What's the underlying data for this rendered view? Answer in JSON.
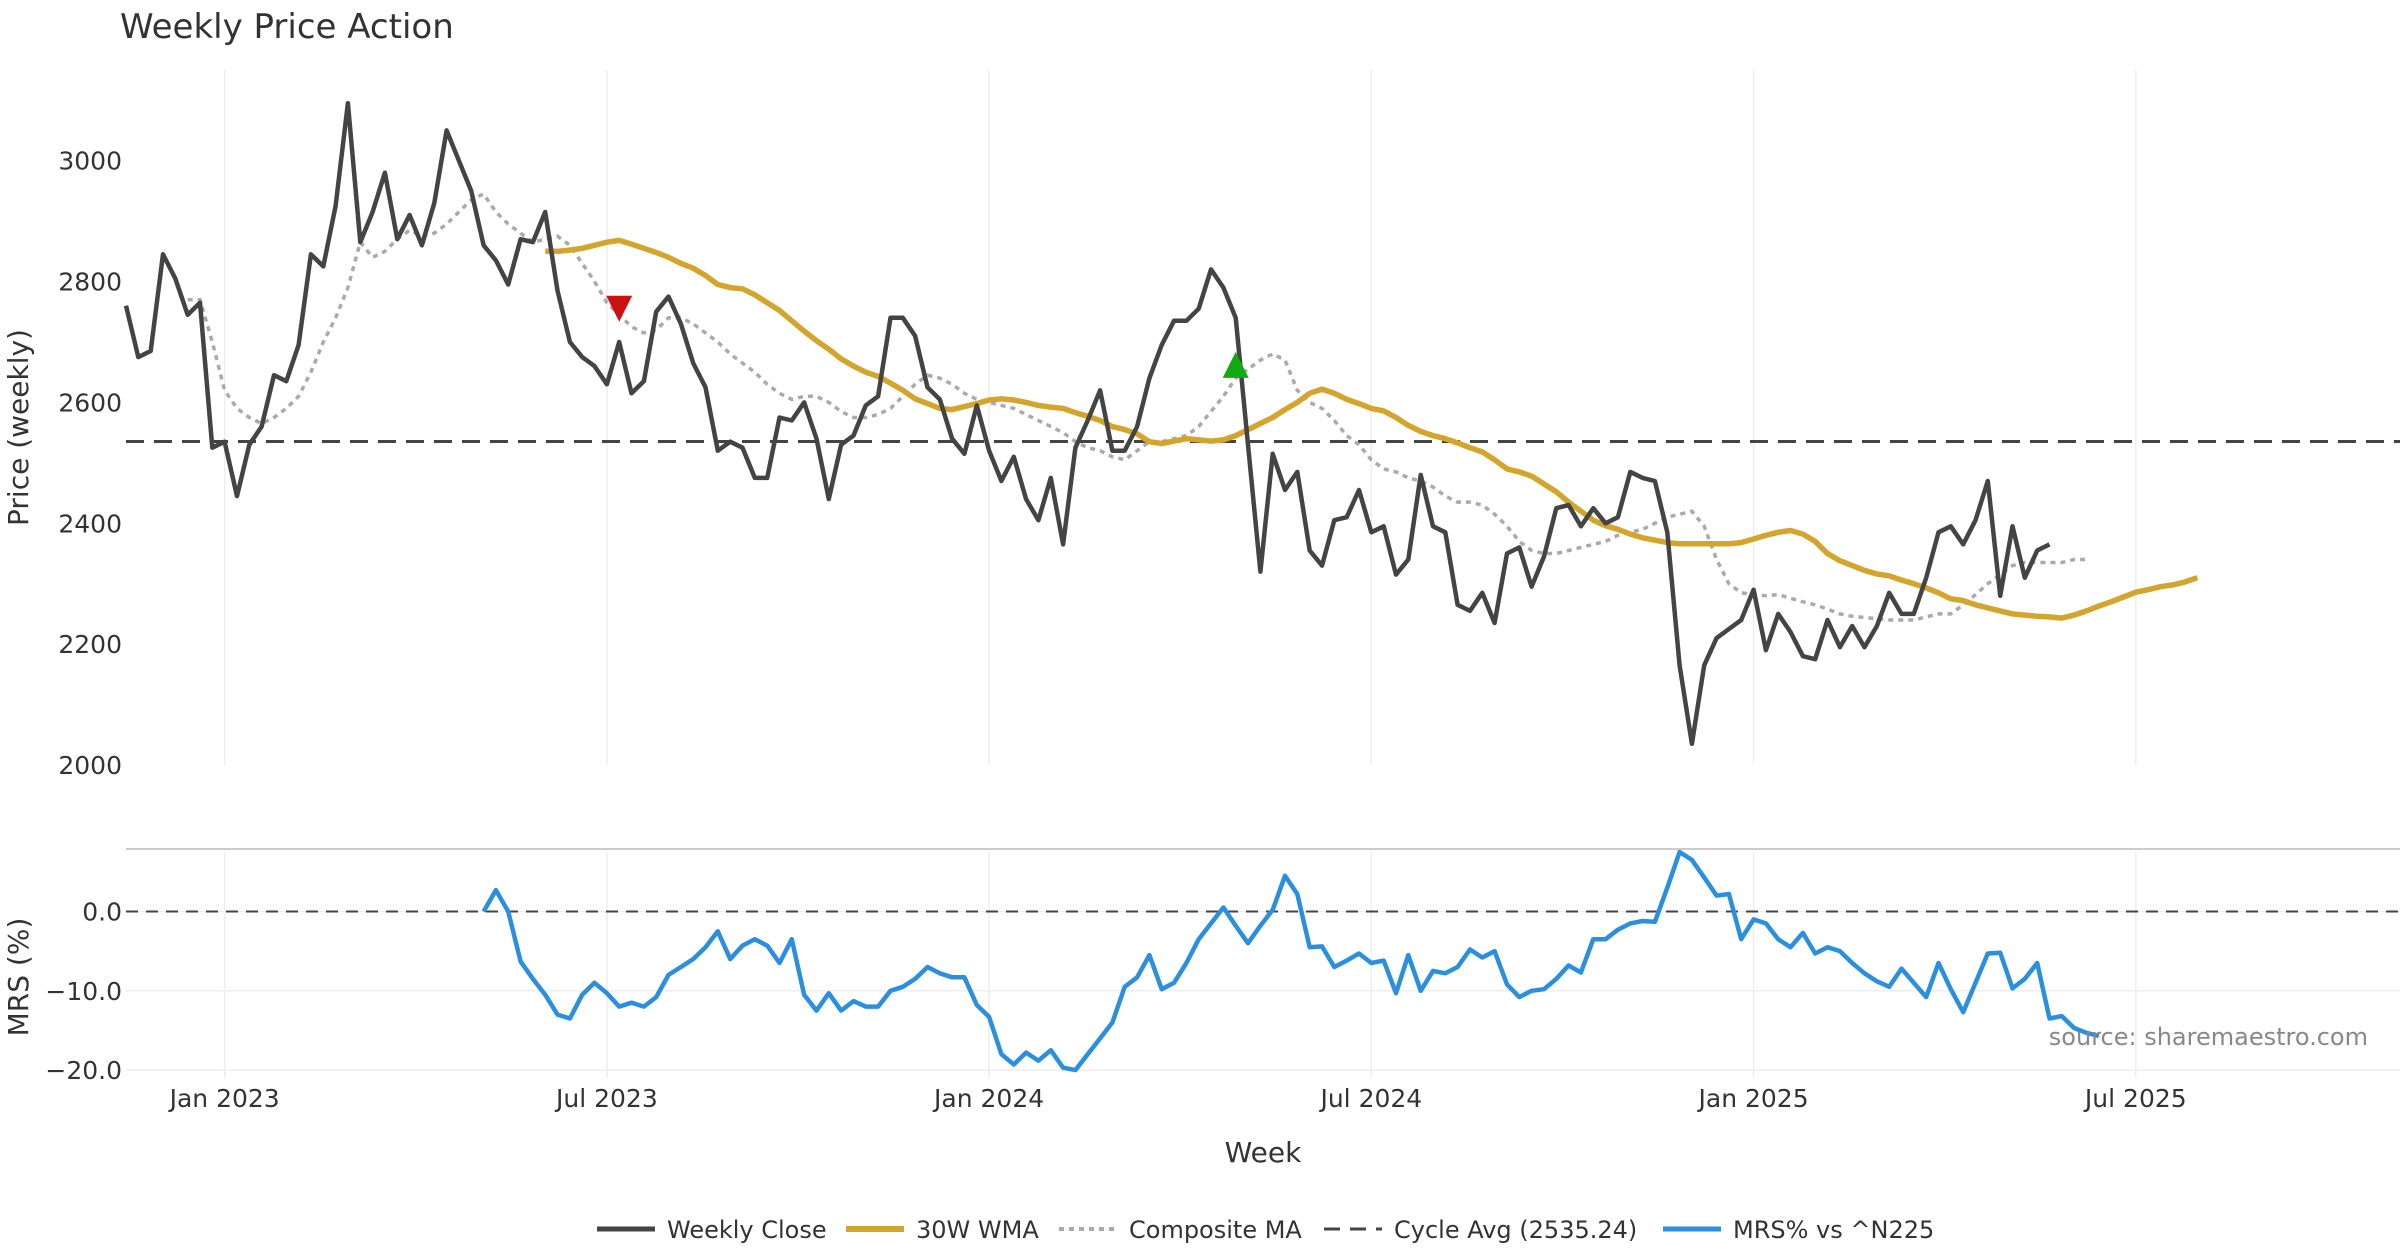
{
  "chart_data": {
    "type": "line",
    "title": "Weekly Price Action",
    "xlabel": "Week",
    "source": "source: sharemaestro.com",
    "x_ticks": [
      "Jan 2023",
      "Jul 2023",
      "Jan 2024",
      "Jul 2024",
      "Jan 2025",
      "Jul 2025"
    ],
    "x_tick_week_index": [
      8,
      39,
      70,
      101,
      132,
      163
    ],
    "colors": {
      "close": "#444444",
      "wma": "#d4a52c",
      "composite": "#aaaaaa",
      "cycle": "#444444",
      "mrs": "#2b8fe0",
      "sell": "#cc1111",
      "buy": "#11aa11",
      "grid": "#eeeeee"
    },
    "price_panel": {
      "ylabel": "Price (weekly)",
      "ylim": [
        2000,
        3150
      ],
      "yticks": [
        2000,
        2200,
        2400,
        2600,
        2800,
        3000
      ],
      "series": [
        {
          "name": "Weekly Close",
          "start_index": 0,
          "values": [
            2760,
            2675,
            2685,
            2845,
            2805,
            2745,
            2765,
            2525,
            2535,
            2445,
            2530,
            2560,
            2645,
            2635,
            2695,
            2845,
            2825,
            2925,
            3095,
            2865,
            2915,
            2980,
            2870,
            2910,
            2860,
            2930,
            3050,
            3000,
            2950,
            2860,
            2835,
            2795,
            2870,
            2865,
            2915,
            2785,
            2700,
            2675,
            2660,
            2630,
            2700,
            2615,
            2635,
            2750,
            2775,
            2730,
            2665,
            2625,
            2520,
            2535,
            2525,
            2475,
            2475,
            2575,
            2570,
            2600,
            2540,
            2440,
            2530,
            2545,
            2595,
            2610,
            2740,
            2740,
            2710,
            2625,
            2605,
            2540,
            2515,
            2595,
            2520,
            2470,
            2510,
            2440,
            2405,
            2475,
            2365,
            2525,
            2570,
            2620,
            2520,
            2520,
            2560,
            2640,
            2695,
            2735,
            2735,
            2755,
            2820,
            2790,
            2740,
            2530,
            2320,
            2515,
            2455,
            2485,
            2355,
            2330,
            2405,
            2410,
            2455,
            2385,
            2395,
            2315,
            2340,
            2480,
            2395,
            2385,
            2265,
            2255,
            2285,
            2235,
            2350,
            2360,
            2295,
            2345,
            2425,
            2430,
            2395,
            2425,
            2400,
            2410,
            2485,
            2475,
            2470,
            2385,
            2165,
            2035,
            2165,
            2210,
            2225,
            2240,
            2290,
            2190,
            2250,
            2220,
            2180,
            2175,
            2240,
            2195,
            2230,
            2195,
            2230,
            2285,
            2250,
            2250,
            2310,
            2385,
            2395,
            2365,
            2405,
            2470,
            2280,
            2395,
            2310,
            2355,
            2365
          ]
        },
        {
          "name": "30W WMA",
          "start_index": 34,
          "values": [
            2850,
            2850,
            2852,
            2855,
            2860,
            2865,
            2868,
            2862,
            2855,
            2848,
            2840,
            2830,
            2822,
            2810,
            2795,
            2790,
            2788,
            2778,
            2765,
            2752,
            2735,
            2718,
            2702,
            2688,
            2672,
            2660,
            2650,
            2643,
            2632,
            2620,
            2606,
            2598,
            2590,
            2588,
            2593,
            2598,
            2604,
            2606,
            2604,
            2600,
            2595,
            2592,
            2590,
            2583,
            2577,
            2570,
            2560,
            2555,
            2548,
            2535,
            2532,
            2536,
            2540,
            2538,
            2536,
            2538,
            2545,
            2555,
            2565,
            2575,
            2588,
            2600,
            2615,
            2622,
            2615,
            2605,
            2598,
            2590,
            2586,
            2575,
            2562,
            2552,
            2545,
            2540,
            2533,
            2525,
            2518,
            2505,
            2490,
            2485,
            2478,
            2465,
            2452,
            2435,
            2420,
            2405,
            2396,
            2390,
            2382,
            2376,
            2372,
            2368,
            2366,
            2366,
            2366,
            2366,
            2366,
            2368,
            2374,
            2380,
            2385,
            2388,
            2382,
            2370,
            2350,
            2338,
            2330,
            2322,
            2316,
            2313,
            2306,
            2300,
            2293,
            2285,
            2275,
            2272,
            2265,
            2260,
            2255,
            2250,
            2248,
            2246,
            2245,
            2243,
            2248,
            2255,
            2263,
            2270,
            2278,
            2286,
            2290,
            2295,
            2298,
            2303,
            2310
          ]
        },
        {
          "name": "Composite MA",
          "start_index": 5,
          "values": [
            2770,
            2770,
            2700,
            2620,
            2590,
            2575,
            2565,
            2575,
            2590,
            2610,
            2650,
            2700,
            2740,
            2790,
            2865,
            2840,
            2850,
            2870,
            2885,
            2875,
            2880,
            2895,
            2915,
            2935,
            2945,
            2915,
            2895,
            2880,
            2865,
            2870,
            2875,
            2860,
            2830,
            2800,
            2765,
            2745,
            2725,
            2715,
            2720,
            2740,
            2740,
            2730,
            2715,
            2700,
            2680,
            2665,
            2650,
            2630,
            2615,
            2605,
            2610,
            2610,
            2600,
            2585,
            2575,
            2575,
            2580,
            2590,
            2610,
            2630,
            2645,
            2640,
            2630,
            2615,
            2605,
            2600,
            2595,
            2590,
            2580,
            2570,
            2560,
            2550,
            2535,
            2525,
            2520,
            2510,
            2505,
            2520,
            2535,
            2535,
            2540,
            2545,
            2560,
            2585,
            2610,
            2640,
            2655,
            2670,
            2680,
            2670,
            2620,
            2600,
            2590,
            2570,
            2545,
            2530,
            2505,
            2490,
            2485,
            2475,
            2470,
            2460,
            2445,
            2435,
            2435,
            2430,
            2415,
            2395,
            2370,
            2355,
            2350,
            2350,
            2355,
            2360,
            2365,
            2370,
            2380,
            2385,
            2390,
            2400,
            2410,
            2415,
            2420,
            2395,
            2340,
            2300,
            2285,
            2282,
            2280,
            2282,
            2276,
            2270,
            2265,
            2258,
            2250,
            2246,
            2244,
            2242,
            2240,
            2240,
            2240,
            2245,
            2250,
            2250,
            2265,
            2282,
            2300,
            2315,
            2330,
            2335,
            2335,
            2335,
            2335,
            2340,
            2340
          ]
        }
      ],
      "cycle_avg": {
        "name": "Cycle Avg (2535.24)",
        "value": 2535.24
      },
      "markers": [
        {
          "type": "sell",
          "week_index": 40,
          "value": 2755
        },
        {
          "type": "buy",
          "week_index": 90,
          "value": 2662
        }
      ]
    },
    "mrs_panel": {
      "ylabel": "MRS (%)",
      "ylim": [
        -21,
        7.5
      ],
      "yticks": [
        0,
        -10,
        -20
      ],
      "ytick_labels": [
        "0.0",
        "−10.0",
        "−20.0"
      ],
      "series": [
        {
          "name": "MRS% vs ^N225",
          "start_index": 29,
          "values": [
            0.0,
            2.7,
            0.0,
            -6.3,
            -8.5,
            -10.5,
            -13.0,
            -13.5,
            -10.5,
            -9.0,
            -10.3,
            -12.0,
            -11.5,
            -12.0,
            -10.8,
            -8.0,
            -7.0,
            -6.0,
            -4.5,
            -2.5,
            -6.0,
            -4.3,
            -3.5,
            -4.3,
            -6.5,
            -3.5,
            -10.5,
            -12.5,
            -10.3,
            -12.5,
            -11.3,
            -12.0,
            -12.0,
            -10.0,
            -9.5,
            -8.5,
            -7.0,
            -7.8,
            -8.3,
            -8.3,
            -11.8,
            -13.3,
            -18.0,
            -19.3,
            -17.8,
            -18.8,
            -17.5,
            -19.7,
            -20.0,
            -18.0,
            -16.0,
            -14.0,
            -9.5,
            -8.3,
            -5.5,
            -9.8,
            -9.0,
            -6.5,
            -3.5,
            -1.5,
            0.5,
            -1.8,
            -4.0,
            -1.8,
            0.2,
            4.5,
            2.2,
            -4.5,
            -4.4,
            -7.0,
            -6.2,
            -5.3,
            -6.5,
            -6.2,
            -10.3,
            -5.5,
            -10.0,
            -7.5,
            -7.8,
            -7.0,
            -4.8,
            -5.8,
            -5.0,
            -9.2,
            -10.8,
            -10.0,
            -9.8,
            -8.5,
            -6.8,
            -7.7,
            -3.5,
            -3.5,
            -2.3,
            -1.5,
            -1.2,
            -1.3,
            3.0,
            7.5,
            6.5,
            4.3,
            2.0,
            2.2,
            -3.5,
            -1.0,
            -1.5,
            -3.5,
            -4.5,
            -2.7,
            -5.3,
            -4.5,
            -5.0,
            -6.5,
            -7.8,
            -8.8,
            -9.5,
            -7.2,
            -9.0,
            -10.8,
            -6.5,
            -9.8,
            -12.7,
            -9.0,
            -5.3,
            -5.2,
            -9.7,
            -8.5,
            -6.5,
            -13.5,
            -13.2,
            -14.7,
            -15.3,
            -15.7
          ]
        }
      ]
    },
    "legend": [
      {
        "label": "Weekly Close",
        "style": "close"
      },
      {
        "label": "30W WMA",
        "style": "wma"
      },
      {
        "label": "Composite MA",
        "style": "composite"
      },
      {
        "label": "Cycle Avg (2535.24)",
        "style": "cycle"
      },
      {
        "label": "MRS% vs ^N225",
        "style": "mrs"
      }
    ]
  }
}
